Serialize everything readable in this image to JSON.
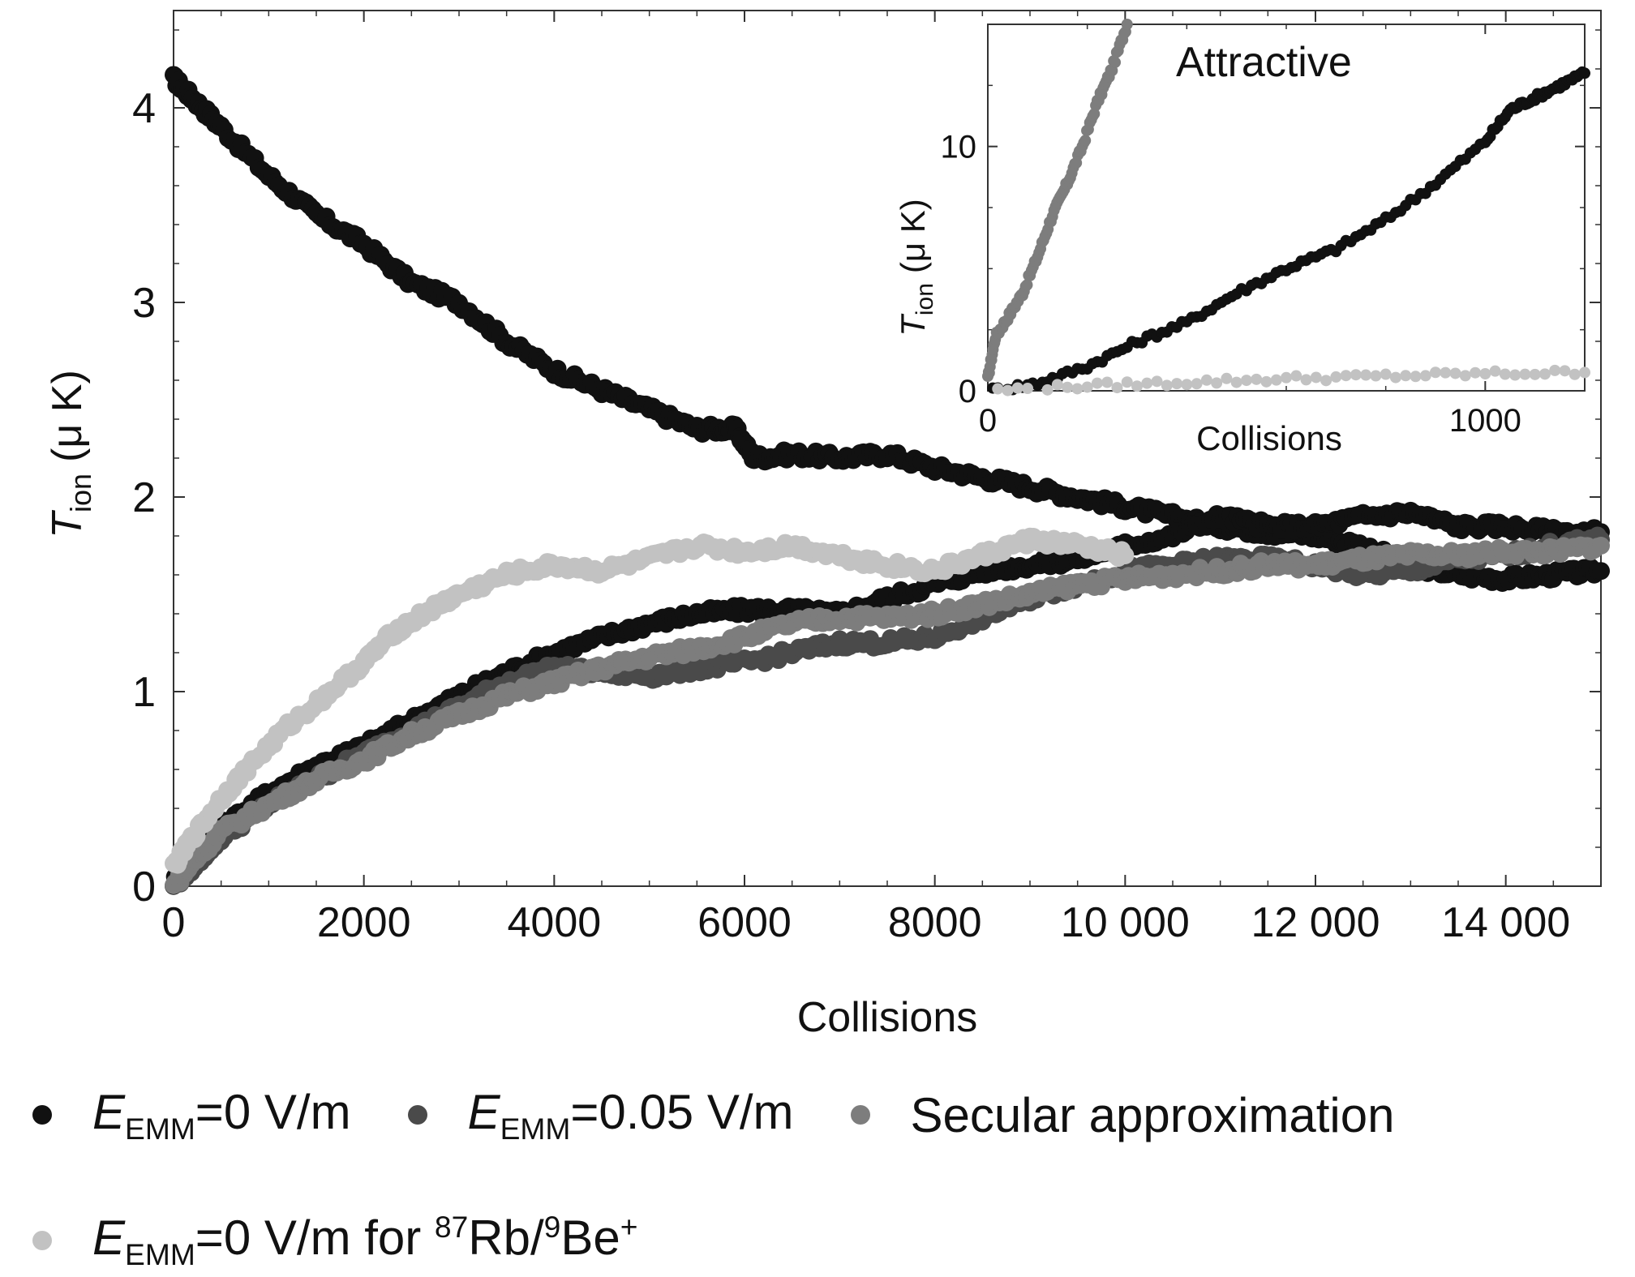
{
  "chart_data": [
    {
      "type": "scatter",
      "title": "",
      "xlabel": "Collisions",
      "ylabel": "T_ion (μ K)",
      "xlim": [
        0,
        15000
      ],
      "ylim": [
        0,
        4.5
      ],
      "xticks": [
        0,
        2000,
        4000,
        6000,
        8000,
        10000,
        12000,
        14000
      ],
      "xtick_labels": [
        "0",
        "2000",
        "4000",
        "6000",
        "8000",
        "10 000",
        "12 000",
        "14 000"
      ],
      "yticks": [
        0,
        1,
        2,
        3,
        4
      ],
      "ytick_labels": [
        "0",
        "1",
        "2",
        "3",
        "4"
      ],
      "grid": false,
      "legend_position": "bottom",
      "series": [
        {
          "name": "E_EMM=0 V/m",
          "color": "#111111",
          "x": [
            0,
            200,
            500,
            1000,
            1500,
            2000,
            2500,
            3000,
            3500,
            4000,
            4500,
            5000,
            5500,
            5900,
            6100,
            6500,
            7000,
            7500,
            8000,
            8500,
            9000,
            9500,
            10000,
            10500,
            11000,
            11500,
            12000,
            12500,
            13000,
            13500,
            14000,
            14500,
            15000
          ],
          "y": [
            4.15,
            4.05,
            3.9,
            3.65,
            3.45,
            3.3,
            3.1,
            3.0,
            2.8,
            2.65,
            2.55,
            2.45,
            2.35,
            2.35,
            2.2,
            2.22,
            2.2,
            2.22,
            2.15,
            2.1,
            2.05,
            2.0,
            1.95,
            1.9,
            1.85,
            1.82,
            1.8,
            1.75,
            1.65,
            1.6,
            1.58,
            1.6,
            1.62
          ]
        },
        {
          "name": "E_EMM=0 V/m",
          "color": "#111111",
          "x": [
            0,
            200,
            500,
            1000,
            1500,
            2000,
            2500,
            3000,
            3500,
            4000,
            4500,
            5000,
            5500,
            6000,
            6500,
            7000,
            7500,
            8000,
            8500,
            9000,
            9500,
            10000,
            10500,
            11000,
            11500,
            12000,
            12500,
            13000,
            13500,
            14000,
            14500,
            15000
          ],
          "y": [
            0.02,
            0.18,
            0.3,
            0.48,
            0.62,
            0.72,
            0.85,
            0.98,
            1.1,
            1.2,
            1.28,
            1.35,
            1.4,
            1.42,
            1.42,
            1.4,
            1.48,
            1.55,
            1.62,
            1.65,
            1.68,
            1.75,
            1.8,
            1.9,
            1.85,
            1.85,
            1.9,
            1.92,
            1.85,
            1.85,
            1.82,
            1.82
          ]
        },
        {
          "name": "E_EMM=0.05 V/m",
          "color": "#4a4a4a",
          "x": [
            0,
            200,
            500,
            1000,
            1500,
            2000,
            2500,
            3000,
            3500,
            4000,
            4500,
            5000,
            5500,
            6000,
            6500,
            7000,
            7500,
            8000,
            8500,
            9000,
            9500,
            10000,
            10500,
            11000,
            11500,
            12000,
            12500,
            13000,
            13500,
            14000,
            14500,
            15000
          ],
          "y": [
            0.0,
            0.1,
            0.25,
            0.42,
            0.55,
            0.68,
            0.8,
            0.92,
            1.05,
            1.12,
            1.1,
            1.08,
            1.12,
            1.15,
            1.2,
            1.25,
            1.25,
            1.28,
            1.38,
            1.48,
            1.55,
            1.62,
            1.65,
            1.68,
            1.68,
            1.65,
            1.6,
            1.62,
            1.68,
            1.7,
            1.75,
            1.78
          ]
        },
        {
          "name": "Secular approximation",
          "color": "#7d7d7d",
          "x": [
            0,
            200,
            500,
            1000,
            1500,
            2000,
            2500,
            3000,
            3500,
            4000,
            4500,
            5000,
            5500,
            6000,
            6500,
            7000,
            7500,
            8000,
            8500,
            9000,
            9500,
            10000,
            10500,
            11000,
            11500,
            12000,
            12500,
            13000,
            13500,
            14000,
            14500,
            15000
          ],
          "y": [
            0.0,
            0.12,
            0.28,
            0.42,
            0.55,
            0.65,
            0.78,
            0.88,
            0.98,
            1.05,
            1.12,
            1.18,
            1.22,
            1.28,
            1.35,
            1.38,
            1.38,
            1.4,
            1.45,
            1.5,
            1.55,
            1.58,
            1.6,
            1.62,
            1.65,
            1.65,
            1.68,
            1.7,
            1.7,
            1.72,
            1.72,
            1.75
          ]
        },
        {
          "name": "E_EMM=0 V/m for 87Rb/9Be+",
          "color": "#c2c2c2",
          "x": [
            0,
            200,
            500,
            800,
            1200,
            1600,
            2000,
            2300,
            2700,
            3000,
            3500,
            4000,
            4500,
            5000,
            5500,
            6000,
            6500,
            7000,
            7500,
            8000,
            8500,
            9000,
            9500,
            10000
          ],
          "y": [
            0.1,
            0.25,
            0.45,
            0.62,
            0.82,
            0.98,
            1.15,
            1.3,
            1.42,
            1.5,
            1.6,
            1.65,
            1.62,
            1.68,
            1.75,
            1.72,
            1.75,
            1.7,
            1.65,
            1.62,
            1.7,
            1.78,
            1.75,
            1.7
          ]
        }
      ]
    },
    {
      "type": "scatter",
      "title": "Attractive",
      "xlabel": "Collisions",
      "ylabel": "T_ion (μ K)",
      "xlim": [
        0,
        1200
      ],
      "ylim": [
        0,
        15
      ],
      "xticks": [
        0,
        1000
      ],
      "xtick_labels": [
        "0",
        "1000"
      ],
      "yticks": [
        0,
        10
      ],
      "ytick_labels": [
        "0",
        "10"
      ],
      "series": [
        {
          "name": "Secular approximation",
          "color": "#7d7d7d",
          "x": [
            0,
            15,
            40,
            70,
            100,
            130,
            160,
            190,
            220,
            250,
            280
          ],
          "y": [
            0.5,
            2.2,
            3.0,
            4.0,
            5.5,
            7.2,
            8.5,
            10.0,
            11.8,
            13.2,
            15.0
          ]
        },
        {
          "name": "E_EMM=0 V/m",
          "color": "#111111",
          "x": [
            0,
            100,
            200,
            300,
            400,
            500,
            600,
            700,
            800,
            900,
            1000,
            1050,
            1100,
            1150,
            1200
          ],
          "y": [
            0.0,
            0.3,
            1.0,
            2.0,
            2.8,
            4.0,
            5.0,
            5.8,
            7.0,
            8.5,
            10.2,
            11.5,
            12.0,
            12.5,
            13.0
          ]
        },
        {
          "name": "E_EMM=0.05 V/m",
          "color": "#c2c2c2",
          "x": [
            0,
            200,
            400,
            600,
            800,
            1000,
            1200
          ],
          "y": [
            0.0,
            0.2,
            0.35,
            0.5,
            0.6,
            0.7,
            0.75
          ]
        }
      ]
    }
  ],
  "legend": {
    "items": [
      {
        "prefix": "E",
        "sub": "EMM",
        "suffix": "=0 V/m",
        "color": "#111111"
      },
      {
        "prefix": "E",
        "sub": "EMM",
        "suffix": "=0.05 V/m",
        "color": "#4a4a4a"
      },
      {
        "plain": "Secular approximation",
        "color": "#7d7d7d"
      },
      {
        "prefix": "E",
        "sub": "EMM",
        "suffix": "=0 V/m for ",
        "sup1": "87",
        "mid": "Rb/",
        "sup2": "9",
        "tail": "Be",
        "sup3": "+",
        "color": "#c2c2c2"
      }
    ]
  },
  "axes_text": {
    "main_xlabel": "Collisions",
    "main_ylabel_T": "T",
    "main_ylabel_sub": "ion",
    "main_ylabel_rest": "(μ K)",
    "inset_title": "Attractive",
    "inset_xlabel": "Collisions",
    "inset_ylabel_T": "T",
    "inset_ylabel_sub": "ion",
    "inset_ylabel_rest": "(μ K)"
  }
}
